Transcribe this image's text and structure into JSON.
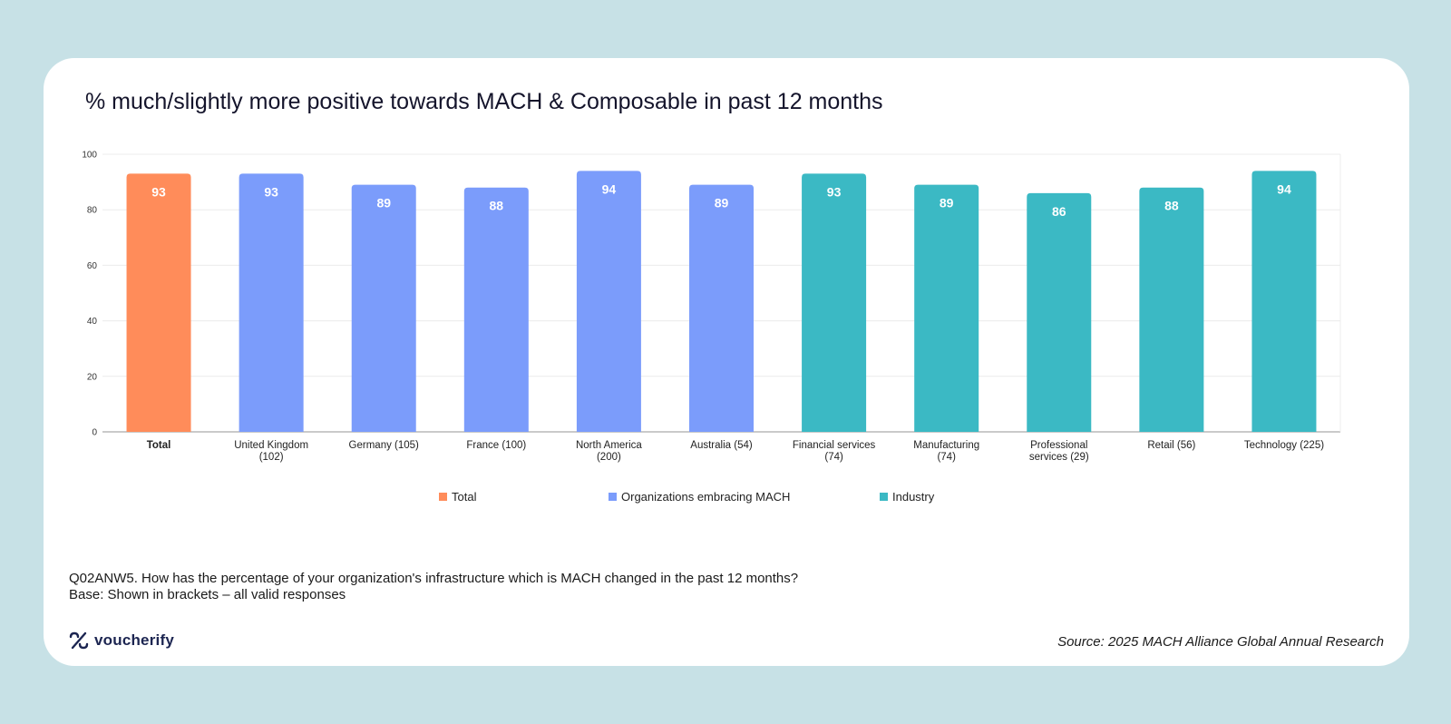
{
  "chart_data": {
    "type": "bar",
    "title": "% much/slightly more positive towards MACH & Composable in past 12 months",
    "categories": [
      [
        "Total"
      ],
      [
        "United Kingdom",
        "(102)"
      ],
      [
        "Germany (105)"
      ],
      [
        "France (100)"
      ],
      [
        "North America",
        "(200)"
      ],
      [
        "Australia (54)"
      ],
      [
        "Financial services",
        "(74)"
      ],
      [
        "Manufacturing",
        "(74)"
      ],
      [
        "Professional",
        "services (29)"
      ],
      [
        "Retail (56)"
      ],
      [
        "Technology (225)"
      ]
    ],
    "values": [
      93,
      93,
      89,
      88,
      94,
      89,
      93,
      89,
      86,
      88,
      94
    ],
    "groups": [
      "total",
      "org",
      "org",
      "org",
      "org",
      "org",
      "industry",
      "industry",
      "industry",
      "industry",
      "industry"
    ],
    "legend": [
      {
        "key": "total",
        "label": "Total",
        "color": "#ff8c5a"
      },
      {
        "key": "org",
        "label": "Organizations embracing MACH",
        "color": "#7b9cfb"
      },
      {
        "key": "industry",
        "label": "Industry",
        "color": "#3bb9c4"
      }
    ],
    "yticks": [
      0,
      20,
      40,
      60,
      80,
      100
    ],
    "ylim": [
      0,
      100
    ],
    "xlabel": "",
    "ylabel": "",
    "legend_position": "bottom"
  },
  "footnote": {
    "question": "Q02ANW5. How has the percentage of your organization's infrastructure which is MACH changed in the past 12 months?",
    "base": "Base: Shown in brackets – all valid responses"
  },
  "brand": {
    "name": "voucherify"
  },
  "source": "Source: 2025 MACH Alliance Global Annual Research"
}
